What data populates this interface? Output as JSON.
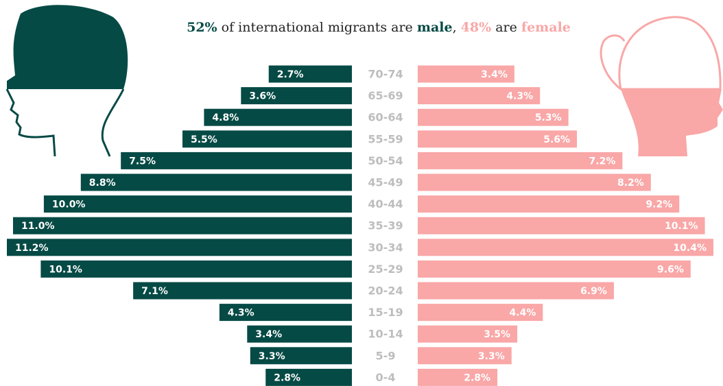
{
  "chart_data": {
    "type": "pyramid",
    "title_parts": [
      "52%",
      " of international migrants are ",
      "male",
      ", ",
      "48%",
      " are ",
      "female"
    ],
    "categories": [
      "70-74",
      "65-69",
      "60-64",
      "55-59",
      "50-54",
      "45-49",
      "40-44",
      "35-39",
      "30-34",
      "25-29",
      "20-24",
      "15-19",
      "10-14",
      "5-9",
      "0-4"
    ],
    "series": [
      {
        "name": "male",
        "color": "#064a45",
        "values": [
          2.7,
          3.6,
          4.8,
          5.5,
          7.5,
          8.8,
          10.0,
          11.0,
          11.2,
          10.1,
          7.1,
          4.3,
          3.4,
          3.3,
          2.8
        ],
        "value_labels": [
          "2.7%",
          "3.6%",
          "4.8%",
          "5.5%",
          "7.5%",
          "8.8%",
          "10.0%",
          "11.0%",
          "11.2%",
          "10.1%",
          "7.1%",
          "4.3%",
          "3.4%",
          "3.3%",
          "2.8%"
        ]
      },
      {
        "name": "female",
        "color": "#f9a7a7",
        "values": [
          3.4,
          4.3,
          5.3,
          5.6,
          7.2,
          8.2,
          9.2,
          10.1,
          10.4,
          9.6,
          6.9,
          4.4,
          3.5,
          3.3,
          2.8
        ],
        "value_labels": [
          "3.4%",
          "4.3%",
          "5.3%",
          "5.6%",
          "7.2%",
          "8.2%",
          "9.2%",
          "10.1%",
          "10.4%",
          "9.6%",
          "6.9%",
          "4.4%",
          "3.5%",
          "3.3%",
          "2.8%"
        ]
      }
    ]
  }
}
